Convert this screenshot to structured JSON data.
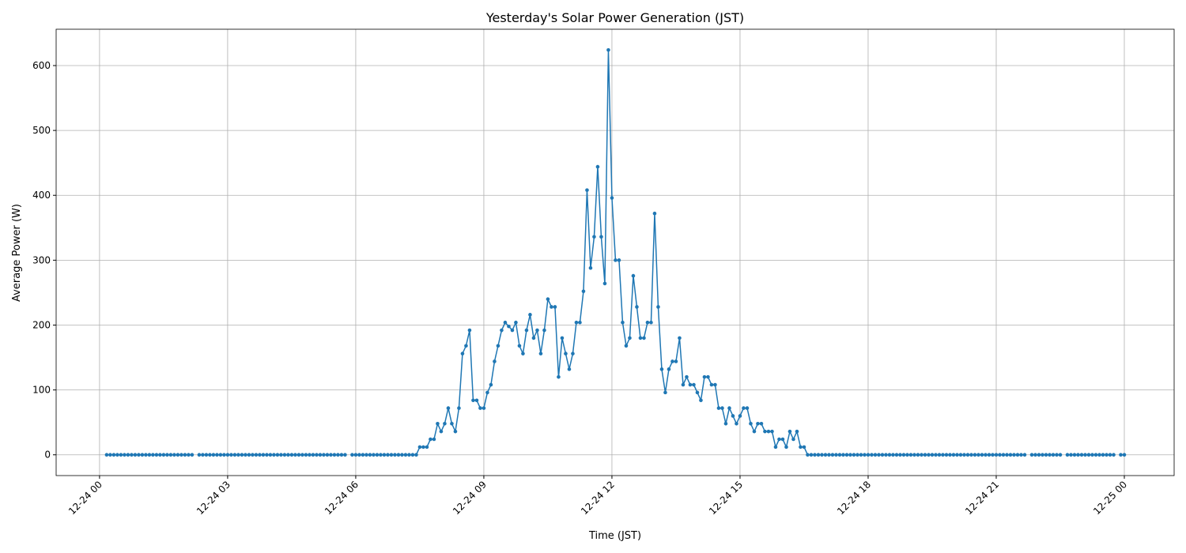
{
  "chart_data": {
    "type": "line",
    "title": "Yesterday's Solar Power Generation (JST)",
    "x_label": "Time (JST)",
    "y_label": "Average Power (W)",
    "x": [
      10,
      15,
      20,
      25,
      30,
      35,
      40,
      45,
      50,
      55,
      60,
      65,
      70,
      75,
      80,
      85,
      90,
      95,
      100,
      105,
      110,
      115,
      120,
      125,
      130,
      135,
      140,
      145,
      150,
      155,
      160,
      165,
      170,
      175,
      180,
      185,
      190,
      195,
      200,
      205,
      210,
      215,
      220,
      225,
      230,
      235,
      240,
      245,
      250,
      255,
      260,
      265,
      270,
      275,
      280,
      285,
      290,
      295,
      300,
      305,
      310,
      315,
      320,
      325,
      330,
      335,
      340,
      345,
      350,
      355,
      360,
      365,
      370,
      375,
      380,
      385,
      390,
      395,
      400,
      405,
      410,
      415,
      420,
      425,
      430,
      435,
      440,
      445,
      450,
      455,
      460,
      465,
      470,
      475,
      480,
      485,
      490,
      495,
      500,
      505,
      510,
      515,
      520,
      525,
      530,
      535,
      540,
      545,
      550,
      555,
      560,
      565,
      570,
      575,
      580,
      585,
      590,
      595,
      600,
      605,
      610,
      615,
      620,
      625,
      630,
      635,
      640,
      645,
      650,
      655,
      660,
      665,
      670,
      675,
      680,
      685,
      690,
      695,
      700,
      705,
      710,
      715,
      720,
      725,
      730,
      735,
      740,
      745,
      750,
      755,
      760,
      765,
      770,
      775,
      780,
      785,
      790,
      795,
      800,
      805,
      810,
      815,
      820,
      825,
      830,
      835,
      840,
      845,
      850,
      855,
      860,
      865,
      870,
      875,
      880,
      885,
      890,
      895,
      900,
      905,
      910,
      915,
      920,
      925,
      930,
      935,
      940,
      945,
      950,
      955,
      960,
      965,
      970,
      975,
      980,
      985,
      990,
      995,
      1000,
      1005,
      1010,
      1015,
      1020,
      1025,
      1030,
      1035,
      1040,
      1045,
      1050,
      1055,
      1060,
      1065,
      1070,
      1075,
      1080,
      1085,
      1090,
      1095,
      1100,
      1105,
      1110,
      1115,
      1120,
      1125,
      1130,
      1135,
      1140,
      1145,
      1150,
      1155,
      1160,
      1165,
      1170,
      1175,
      1180,
      1185,
      1190,
      1195,
      1200,
      1205,
      1210,
      1215,
      1220,
      1225,
      1230,
      1235,
      1240,
      1245,
      1250,
      1255,
      1260,
      1265,
      1270,
      1275,
      1280,
      1285,
      1290,
      1295,
      1300,
      1305,
      1310,
      1315,
      1320,
      1325,
      1330,
      1335,
      1340,
      1345,
      1350,
      1355,
      1360,
      1365,
      1370,
      1375,
      1380,
      1385,
      1390,
      1395,
      1400,
      1405,
      1410,
      1415,
      1420,
      1425,
      1430,
      1435,
      1440
    ],
    "series": [
      {
        "color": "#1f77b4",
        "values": [
          0,
          0,
          0,
          0,
          0,
          0,
          0,
          0,
          0,
          0,
          0,
          0,
          0,
          0,
          0,
          0,
          0,
          0,
          0,
          0,
          0,
          0,
          0,
          0,
          0,
          null,
          0,
          0,
          0,
          0,
          0,
          0,
          0,
          0,
          0,
          0,
          0,
          0,
          0,
          0,
          0,
          0,
          0,
          0,
          0,
          0,
          0,
          0,
          0,
          0,
          0,
          0,
          0,
          0,
          0,
          0,
          0,
          0,
          0,
          0,
          0,
          0,
          0,
          0,
          0,
          0,
          0,
          0,
          null,
          0,
          0,
          0,
          0,
          0,
          0,
          0,
          0,
          0,
          0,
          0,
          0,
          0,
          0,
          0,
          0,
          0,
          0,
          0,
          12,
          12,
          12,
          24,
          24,
          48,
          36,
          48,
          72,
          48,
          36,
          72,
          156,
          168,
          192,
          84,
          84,
          72,
          72,
          96,
          108,
          144,
          168,
          192,
          204,
          198,
          192,
          204,
          168,
          156,
          192,
          216,
          180,
          192,
          156,
          192,
          240,
          228,
          228,
          120,
          180,
          156,
          132,
          156,
          204,
          204,
          252,
          408,
          288,
          336,
          444,
          336,
          264,
          624,
          396,
          300,
          300,
          204,
          168,
          180,
          276,
          228,
          180,
          180,
          204,
          204,
          372,
          228,
          132,
          96,
          132,
          144,
          144,
          180,
          108,
          120,
          108,
          108,
          96,
          84,
          120,
          120,
          108,
          108,
          72,
          72,
          48,
          72,
          60,
          48,
          60,
          72,
          72,
          48,
          36,
          48,
          48,
          36,
          36,
          36,
          12,
          24,
          24,
          12,
          36,
          24,
          36,
          12,
          12,
          0,
          0,
          0,
          0,
          0,
          0,
          0,
          0,
          0,
          0,
          0,
          0,
          0,
          0,
          0,
          0,
          0,
          0,
          0,
          0,
          0,
          0,
          0,
          0,
          0,
          0,
          0,
          0,
          0,
          0,
          0,
          0,
          0,
          0,
          0,
          0,
          0,
          0,
          0,
          0,
          0,
          0,
          0,
          0,
          0,
          0,
          0,
          0,
          0,
          0,
          0,
          0,
          0,
          0,
          0,
          0,
          0,
          0,
          0,
          0,
          0,
          0,
          null,
          0,
          0,
          0,
          0,
          0,
          0,
          0,
          0,
          0,
          null,
          0,
          0,
          0,
          0,
          0,
          0,
          0,
          0,
          0,
          0,
          0,
          0,
          0,
          0,
          null,
          0,
          0
        ]
      }
    ],
    "xlim": [
      -61,
      1510
    ],
    "xticks": [
      {
        "value": 0,
        "label": "12-24 00"
      },
      {
        "value": 180,
        "label": "12-24 03"
      },
      {
        "value": 360,
        "label": "12-24 06"
      },
      {
        "value": 540,
        "label": "12-24 09"
      },
      {
        "value": 720,
        "label": "12-24 12"
      },
      {
        "value": 900,
        "label": "12-24 15"
      },
      {
        "value": 1080,
        "label": "12-24 18"
      },
      {
        "value": 1260,
        "label": "12-24 21"
      },
      {
        "value": 1440,
        "label": "12-25 00"
      }
    ],
    "ylim": [
      -32,
      656
    ],
    "yticks": [
      0,
      100,
      200,
      300,
      400,
      500,
      600
    ],
    "grid": true
  }
}
